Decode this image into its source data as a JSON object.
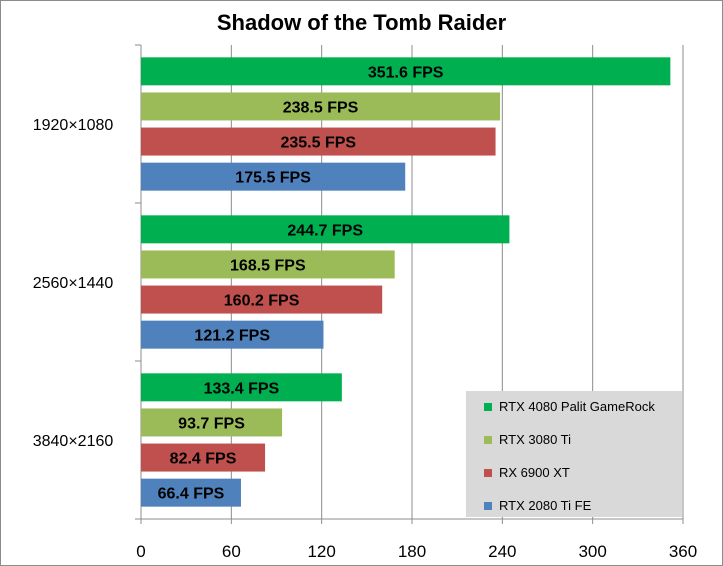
{
  "chart_data": {
    "type": "bar",
    "orientation": "horizontal",
    "title": "Shadow of the Tomb Raider",
    "categories": [
      "1920×1080",
      "2560×1440",
      "3840×2160"
    ],
    "series": [
      {
        "name": "RTX 4080 Palit GameRock",
        "color": "#00b050",
        "values": [
          351.6,
          244.7,
          133.4
        ],
        "labels": [
          "351.6 FPS",
          "244.7 FPS",
          "133.4 FPS"
        ]
      },
      {
        "name": "RTX 3080 Ti",
        "color": "#9bbb59",
        "values": [
          238.5,
          168.5,
          93.7
        ],
        "labels": [
          "238.5 FPS",
          "168.5 FPS",
          "93.7 FPS"
        ]
      },
      {
        "name": "RX 6900 XT",
        "color": "#c0504d",
        "values": [
          235.5,
          160.2,
          82.4
        ],
        "labels": [
          "235.5 FPS",
          "160.2 FPS",
          "82.4 FPS"
        ]
      },
      {
        "name": "RTX 2080 Ti FE",
        "color": "#4f81bd",
        "values": [
          175.5,
          121.2,
          66.4
        ],
        "labels": [
          "175.5 FPS",
          "121.2 FPS",
          "66.4 FPS"
        ]
      }
    ],
    "xlim": [
      0,
      360
    ],
    "xticks": [
      "0",
      "60",
      "120",
      "180",
      "240",
      "300",
      "360"
    ],
    "xlabel": "",
    "ylabel": "",
    "grid": true,
    "legend_position": "bottom-right"
  }
}
